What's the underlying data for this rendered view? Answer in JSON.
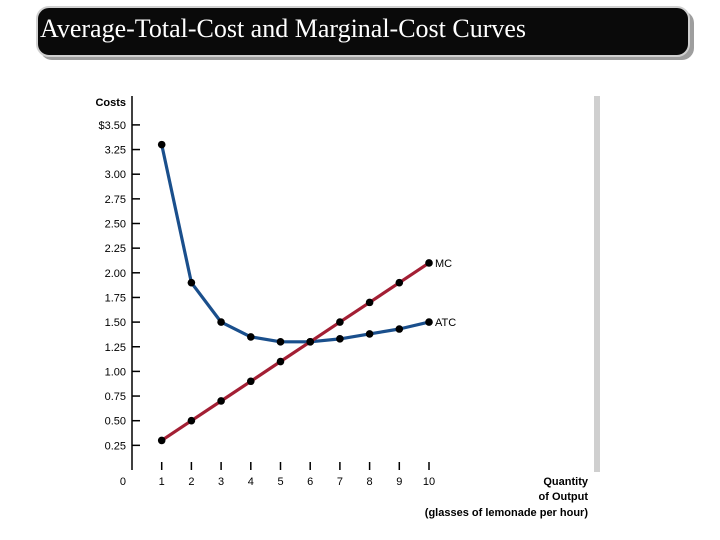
{
  "slide": {
    "title": "Average-Total-Cost and Marginal-Cost Curves",
    "colors": {
      "banner": "#0a0a0a",
      "banner_outline": "#bdbdbd",
      "title_text": "#ffffff"
    }
  },
  "chart_data": {
    "type": "line",
    "ylabel": "Costs",
    "xlabel": [
      "Quantity",
      "of Output",
      "(glasses of lemonade per hour)"
    ],
    "ytick_labels": [
      "$3.50",
      "3.25",
      "3.00",
      "2.75",
      "2.50",
      "2.25",
      "2.00",
      "1.75",
      "1.50",
      "1.25",
      "1.00",
      "0.75",
      "0.50",
      "0.25"
    ],
    "yticks": [
      3.5,
      3.25,
      3.0,
      2.75,
      2.5,
      2.25,
      2.0,
      1.75,
      1.5,
      1.25,
      1.0,
      0.75,
      0.5,
      0.25
    ],
    "x_origin_label": "0",
    "xticks": [
      1,
      2,
      3,
      4,
      5,
      6,
      7,
      8,
      9,
      10
    ],
    "xtick_labels": [
      "1",
      "2",
      "3",
      "4",
      "5",
      "6",
      "7",
      "8",
      "9",
      "10"
    ],
    "xlim": [
      0,
      10
    ],
    "ylim": [
      0,
      3.5
    ],
    "grid": false,
    "series": [
      {
        "name": "ATC",
        "color": "#1a4f8c",
        "x": [
          1,
          2,
          3,
          4,
          5,
          6,
          7,
          8,
          9,
          10
        ],
        "y": [
          3.3,
          1.9,
          1.5,
          1.35,
          1.3,
          1.3,
          1.33,
          1.38,
          1.43,
          1.5
        ]
      },
      {
        "name": "MC",
        "color": "#a31f34",
        "x": [
          1,
          2,
          3,
          4,
          5,
          6,
          7,
          8,
          9,
          10
        ],
        "y": [
          0.3,
          0.5,
          0.7,
          0.9,
          1.1,
          1.3,
          1.5,
          1.7,
          1.9,
          2.1
        ]
      }
    ]
  }
}
